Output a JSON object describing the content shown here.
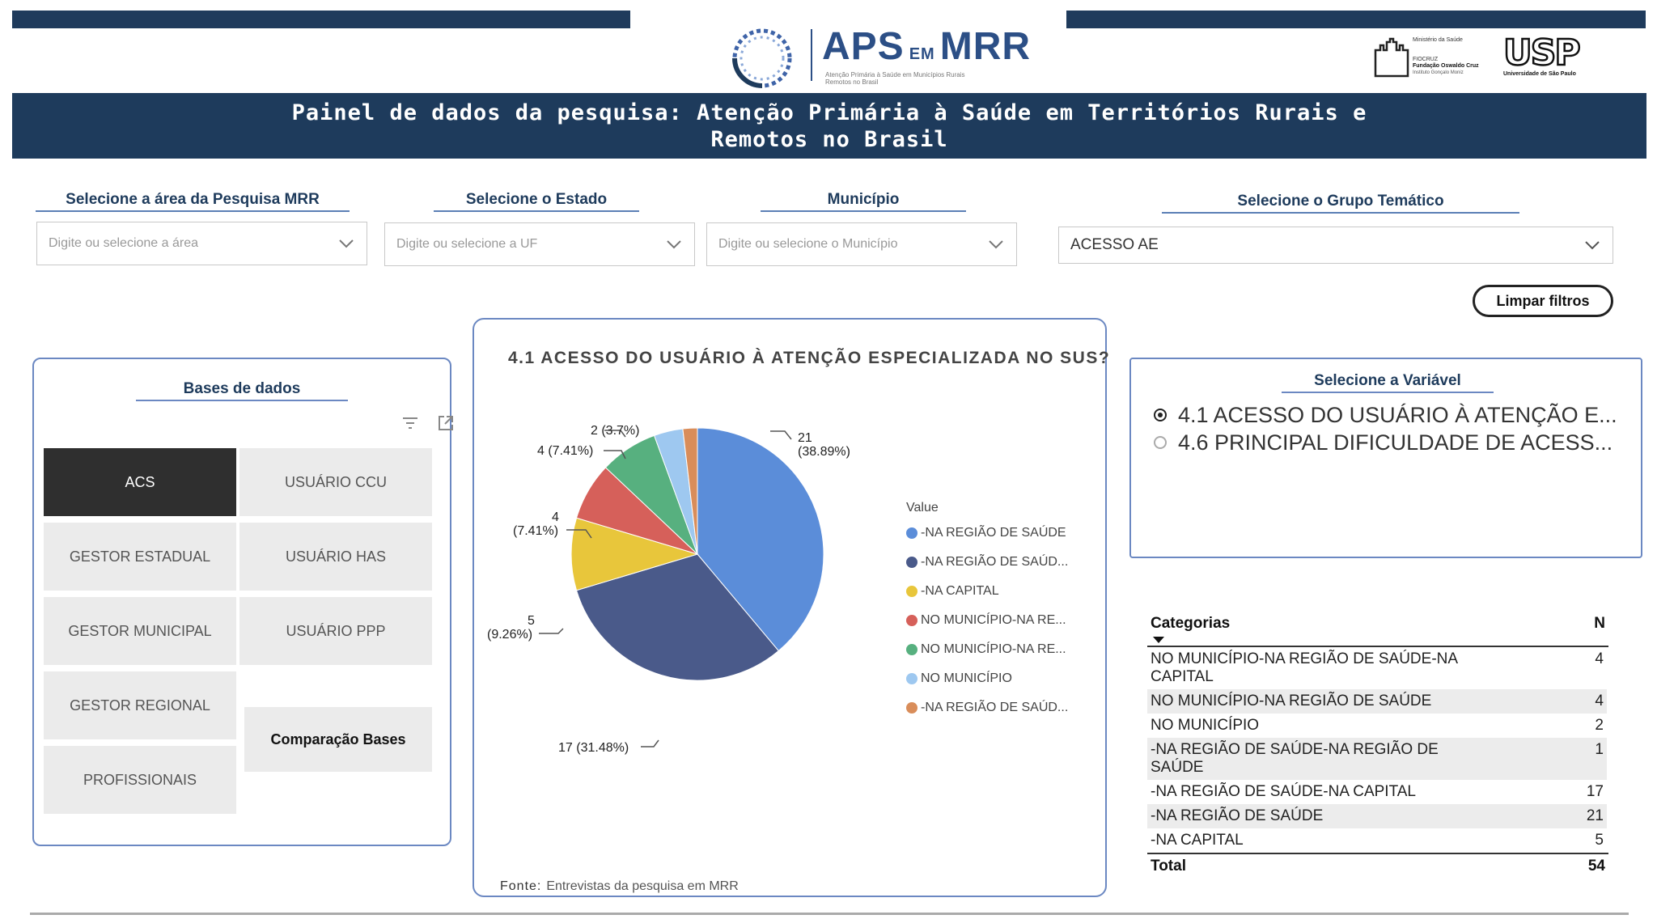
{
  "header": {
    "logo_title": "APS",
    "logo_em": "EM",
    "logo_title2": "MRR",
    "logo_subtitle": "Atenção Primária à Saúde em Municípios Rurais Remotos no Brasil",
    "ministerio": "Ministério da Saúde",
    "fiocruz": "FIOCRUZ",
    "fiocruz_full": "Fundação Oswaldo Cruz",
    "instituto": "Instituto Gonçalo Moniz",
    "usp": "USP",
    "usp_full": "Universidade de São Paulo",
    "banner_title_line1": "Painel de dados da pesquisa: Atenção Primária à Saúde em Territórios Rurais e",
    "banner_title_line2": "Remotos no Brasil"
  },
  "filters": {
    "area": {
      "label": "Selecione a área da Pesquisa MRR",
      "placeholder": "Digite ou selecione a área"
    },
    "estado": {
      "label": "Selecione o Estado",
      "placeholder": "Digite ou selecione a UF"
    },
    "municipio": {
      "label": "Município",
      "placeholder": "Digite ou selecione o Município"
    },
    "grupo": {
      "label": "Selecione o Grupo Temático",
      "value": "ACESSO AE"
    },
    "clear_button": "Limpar filtros"
  },
  "bases": {
    "title": "Bases de dados",
    "items": [
      "ACS",
      "USUÁRIO CCU",
      "GESTOR ESTADUAL",
      "USUÁRIO HAS",
      "GESTOR MUNICIPAL",
      "USUÁRIO PPP",
      "GESTOR REGIONAL",
      "PROFISSIONAIS"
    ],
    "active": "ACS",
    "compare_button": "Comparação Bases"
  },
  "chart_panel": {
    "title": "4.1 ACESSO DO USUÁRIO À ATENÇÃO ESPECIALIZADA NO SUS?",
    "source_label": "Fonte:",
    "source_text": "Entrevistas da pesquisa em MRR",
    "legend_title": "Value",
    "legend": [
      {
        "label": "-NA REGIÃO DE SAÚDE",
        "color": "#5b8dd9"
      },
      {
        "label": "-NA REGIÃO DE SAÚD...",
        "color": "#4a5a8a"
      },
      {
        "label": "-NA CAPITAL",
        "color": "#e8c63b"
      },
      {
        "label": "NO MUNICÍPIO-NA RE...",
        "color": "#d6605a"
      },
      {
        "label": "NO MUNICÍPIO-NA RE...",
        "color": "#57b07f"
      },
      {
        "label": "NO MUNICÍPIO",
        "color": "#9ec8f0"
      },
      {
        "label": "-NA REGIÃO DE SAÚD...",
        "color": "#d98d5a"
      }
    ],
    "slice_labels": [
      "21",
      "(38.89%)",
      "17 (31.48%)",
      "5",
      "(9.26%)",
      "4",
      "(7.41%)",
      "4 (7.41%)",
      "2 (3.7%)"
    ]
  },
  "chart_data": {
    "type": "pie",
    "title": "4.1 ACESSO DO USUÁRIO À ATENÇÃO ESPECIALIZADA NO SUS?",
    "legend_title": "Value",
    "legend_position": "right",
    "slices": [
      {
        "label": "-NA REGIÃO DE SAÚDE",
        "value": 21,
        "percent": 38.89,
        "color": "#5b8dd9"
      },
      {
        "label": "-NA REGIÃO DE SAÚDE-NA CAPITAL",
        "value": 17,
        "percent": 31.48,
        "color": "#4a5a8a"
      },
      {
        "label": "-NA CAPITAL",
        "value": 5,
        "percent": 9.26,
        "color": "#e8c63b"
      },
      {
        "label": "NO MUNICÍPIO-NA REGIÃO DE SAÚDE-NA CAPITAL",
        "value": 4,
        "percent": 7.41,
        "color": "#d6605a"
      },
      {
        "label": "NO MUNICÍPIO-NA REGIÃO DE SAÚDE",
        "value": 4,
        "percent": 7.41,
        "color": "#57b07f"
      },
      {
        "label": "NO MUNICÍPIO",
        "value": 2,
        "percent": 3.7,
        "color": "#9ec8f0"
      },
      {
        "label": "-NA REGIÃO DE SAÚDE-NA REGIÃO DE SAÚDE",
        "value": 1,
        "percent": 1.85,
        "color": "#d98d5a"
      }
    ]
  },
  "variables": {
    "title": "Selecione a Variável",
    "options": [
      {
        "label": "4.1 ACESSO DO USUÁRIO À ATENÇÃO E...",
        "selected": true
      },
      {
        "label": "4.6 PRINCIPAL DIFICULDADE DE ACESS...",
        "selected": false
      }
    ]
  },
  "table": {
    "col_categoria": "Categorias",
    "col_n": "N",
    "rows": [
      {
        "cat": "NO MUNICÍPIO-NA REGIÃO DE SAÚDE-NA CAPITAL",
        "n": "4"
      },
      {
        "cat": "NO MUNICÍPIO-NA REGIÃO DE SAÚDE",
        "n": "4"
      },
      {
        "cat": "NO MUNICÍPIO",
        "n": "2"
      },
      {
        "cat": "-NA REGIÃO DE SAÚDE-NA REGIÃO DE SAÚDE",
        "n": "1"
      },
      {
        "cat": "-NA REGIÃO DE SAÚDE-NA CAPITAL",
        "n": "17"
      },
      {
        "cat": "-NA REGIÃO DE SAÚDE",
        "n": "21"
      },
      {
        "cat": "-NA CAPITAL",
        "n": "5"
      }
    ],
    "total_label": "Total",
    "total_value": "54"
  }
}
